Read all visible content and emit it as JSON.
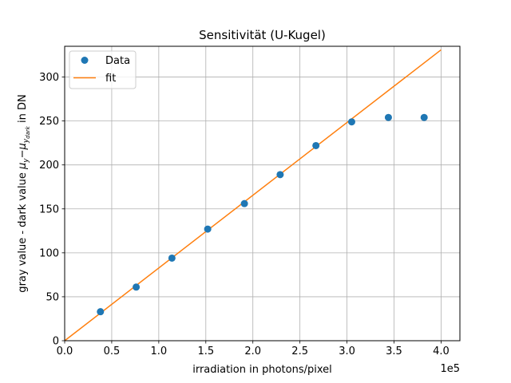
{
  "chart_data": {
    "type": "scatter",
    "title": "Sensitivität (U-Kugel)",
    "xlabel": "irradiation in photons/pixel",
    "ylabel": {
      "prefix": "gray value - dark value ",
      "mu": "μ",
      "y": "y",
      "minus": "−",
      "ydark_y": "y",
      "ydark_sub": "dark",
      "suffix": " in DN"
    },
    "x_offset_label": "1e5",
    "xlim": [
      0,
      4.2
    ],
    "ylim": [
      0,
      335
    ],
    "x_scale_note": "x in units of 1e5 photons/pixel",
    "xticks": [
      0.0,
      0.5,
      1.0,
      1.5,
      2.0,
      2.5,
      3.0,
      3.5,
      4.0
    ],
    "xtick_labels": [
      "0.0",
      "0.5",
      "1.0",
      "1.5",
      "2.0",
      "2.5",
      "3.0",
      "3.5",
      "4.0"
    ],
    "yticks": [
      0,
      50,
      100,
      150,
      200,
      250,
      300
    ],
    "ytick_labels": [
      "0",
      "50",
      "100",
      "150",
      "200",
      "250",
      "300"
    ],
    "grid": true,
    "legend_placement": "top-left",
    "series": [
      {
        "name": "Data",
        "kind": "scatter",
        "color": "#1f77b4",
        "x": [
          0.38,
          0.76,
          1.14,
          1.52,
          1.91,
          2.29,
          2.67,
          3.05,
          3.44,
          3.82
        ],
        "y": [
          33,
          61,
          94,
          127,
          156,
          189,
          222,
          249,
          254,
          254
        ]
      },
      {
        "name": "fit",
        "kind": "line",
        "color": "#ff7f0e",
        "x": [
          0.0,
          4.0
        ],
        "y": [
          0,
          331
        ]
      }
    ]
  }
}
